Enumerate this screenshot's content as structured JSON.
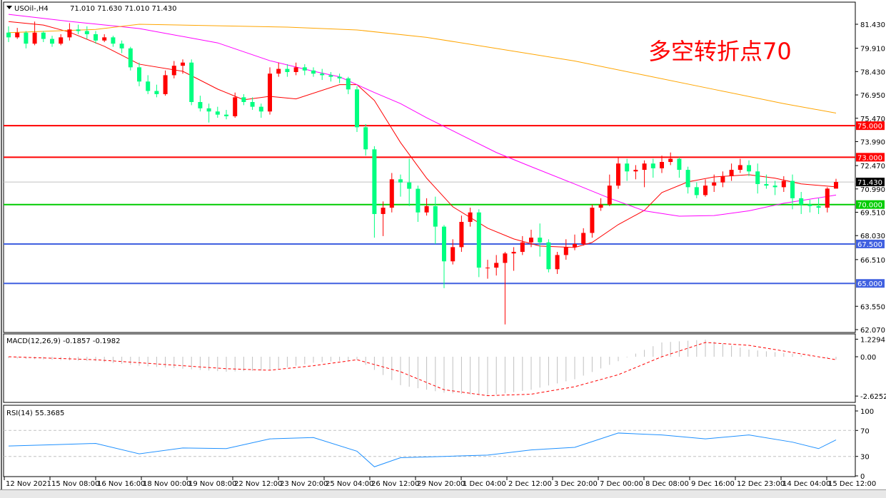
{
  "header": {
    "symbol": "USOil-,H4",
    "ohlc": "71.010 71.630 71.010 71.430"
  },
  "annotation": "多空转折点70",
  "colors": {
    "up": "#ff0000",
    "down": "#00ff80",
    "ma_fast": "#ff0000",
    "ma_mid": "#ff00ff",
    "ma_slow": "#ffa500",
    "macd_bar": "#c0c0c0",
    "macd_signal": "#ff0000",
    "rsi": "#1e90ff"
  },
  "chart_data": [
    {
      "type": "candlestick",
      "title": "USOil-,H4 71.010 71.630 71.010 71.430",
      "ylim": [
        62.07,
        81.43
      ],
      "price_ticks": [
        "81.430",
        "79.910",
        "78.430",
        "76.950",
        "75.470",
        "73.990",
        "72.470",
        "70.990",
        "69.510",
        "68.030",
        "66.510",
        "63.550",
        "62.070"
      ],
      "time_labels": [
        "12 Nov 2021",
        "15 Nov 08:00",
        "16 Nov 16:00",
        "18 Nov 00:00",
        "19 Nov 08:00",
        "22 Nov 12:00",
        "23 Nov 20:00",
        "25 Nov 04:00",
        "26 Nov 12:00",
        "29 Nov 20:00",
        "1 Dec 04:00",
        "2 Dec 12:00",
        "3 Dec 20:00",
        "7 Dec 00:00",
        "8 Dec 08:00",
        "9 Dec 16:00",
        "12 Dec 23:00",
        "14 Dec 04:00",
        "15 Dec 12:00"
      ],
      "candles_ohlc": [
        [
          80.9,
          81.3,
          80.3,
          80.6
        ],
        [
          80.6,
          81.2,
          80.5,
          80.9
        ],
        [
          80.9,
          81.0,
          79.9,
          80.2
        ],
        [
          80.2,
          81.6,
          80.1,
          80.9
        ],
        [
          80.9,
          81.0,
          80.3,
          80.5
        ],
        [
          80.5,
          80.7,
          80.0,
          80.2
        ],
        [
          80.2,
          80.8,
          80.1,
          80.6
        ],
        [
          80.6,
          81.5,
          80.4,
          81.1
        ],
        [
          81.1,
          81.4,
          80.8,
          81.0
        ],
        [
          81.0,
          81.3,
          80.5,
          80.8
        ],
        [
          80.8,
          81.0,
          80.2,
          80.4
        ],
        [
          80.4,
          80.8,
          80.3,
          80.6
        ],
        [
          80.6,
          80.7,
          80.0,
          80.2
        ],
        [
          80.2,
          80.4,
          79.6,
          79.9
        ],
        [
          79.9,
          80.0,
          78.5,
          78.7
        ],
        [
          78.7,
          79.0,
          77.5,
          77.8
        ],
        [
          77.8,
          78.2,
          77.0,
          77.2
        ],
        [
          77.2,
          77.6,
          76.8,
          77.0
        ],
        [
          77.0,
          78.5,
          76.9,
          78.2
        ],
        [
          78.2,
          79.1,
          78.0,
          78.8
        ],
        [
          78.8,
          79.2,
          78.3,
          79.0
        ],
        [
          79.0,
          79.2,
          76.3,
          76.5
        ],
        [
          76.5,
          76.9,
          75.9,
          76.1
        ],
        [
          76.1,
          76.4,
          75.2,
          75.9
        ],
        [
          75.9,
          76.2,
          75.5,
          75.7
        ],
        [
          75.7,
          76.0,
          75.4,
          75.6
        ],
        [
          75.6,
          77.1,
          75.5,
          76.8
        ],
        [
          76.8,
          77.0,
          76.3,
          76.5
        ],
        [
          76.5,
          76.8,
          76.0,
          76.2
        ],
        [
          76.2,
          76.4,
          75.5,
          75.9
        ],
        [
          75.9,
          78.7,
          75.7,
          78.3
        ],
        [
          78.3,
          79.0,
          78.1,
          78.6
        ],
        [
          78.6,
          78.9,
          78.1,
          78.4
        ],
        [
          78.4,
          79.0,
          78.2,
          78.7
        ],
        [
          78.7,
          78.9,
          78.2,
          78.5
        ],
        [
          78.5,
          78.7,
          78.1,
          78.3
        ],
        [
          78.3,
          78.6,
          77.9,
          78.2
        ],
        [
          78.2,
          78.4,
          77.8,
          78.1
        ],
        [
          78.1,
          78.3,
          77.7,
          78.0
        ],
        [
          78.0,
          78.1,
          77.0,
          77.3
        ],
        [
          77.3,
          77.5,
          74.6,
          74.9
        ],
        [
          74.9,
          75.1,
          73.1,
          73.5
        ],
        [
          73.5,
          73.7,
          67.9,
          69.4
        ],
        [
          69.4,
          70.2,
          68.0,
          69.8
        ],
        [
          69.8,
          72.0,
          69.5,
          71.6
        ],
        [
          71.6,
          71.9,
          70.5,
          71.4
        ],
        [
          71.4,
          72.9,
          69.9,
          71.0
        ],
        [
          71.0,
          71.2,
          68.9,
          69.5
        ],
        [
          69.5,
          70.4,
          69.3,
          69.9
        ],
        [
          69.9,
          70.5,
          67.5,
          68.6
        ],
        [
          68.6,
          68.7,
          64.7,
          66.4
        ],
        [
          66.4,
          67.8,
          66.2,
          67.3
        ],
        [
          67.3,
          69.3,
          67.0,
          68.9
        ],
        [
          68.9,
          69.8,
          68.6,
          69.5
        ],
        [
          69.5,
          69.7,
          65.4,
          66.0
        ],
        [
          66.0,
          66.5,
          65.3,
          66.0
        ],
        [
          66.0,
          66.8,
          65.5,
          66.3
        ],
        [
          66.3,
          67.0,
          62.4,
          66.9
        ],
        [
          66.9,
          67.3,
          65.8,
          67.0
        ],
        [
          67.0,
          68.0,
          66.8,
          67.6
        ],
        [
          67.6,
          68.4,
          67.3,
          67.9
        ],
        [
          67.9,
          68.8,
          66.7,
          67.6
        ],
        [
          67.6,
          67.8,
          65.7,
          65.9
        ],
        [
          65.9,
          67.0,
          65.6,
          66.8
        ],
        [
          66.8,
          67.8,
          66.5,
          67.3
        ],
        [
          67.3,
          68.1,
          67.1,
          67.5
        ],
        [
          67.5,
          68.5,
          67.4,
          68.2
        ],
        [
          68.2,
          70.0,
          67.9,
          69.8
        ],
        [
          69.8,
          70.4,
          69.6,
          70.0
        ],
        [
          70.0,
          71.9,
          69.9,
          71.2
        ],
        [
          71.2,
          73.0,
          71.0,
          72.6
        ],
        [
          72.6,
          72.9,
          71.5,
          72.1
        ],
        [
          72.1,
          72.5,
          71.6,
          72.2
        ],
        [
          72.2,
          72.8,
          71.1,
          72.6
        ],
        [
          72.6,
          72.9,
          71.7,
          72.3
        ],
        [
          72.3,
          73.1,
          72.0,
          72.7
        ],
        [
          72.7,
          73.3,
          72.5,
          72.9
        ],
        [
          72.9,
          73.0,
          71.7,
          72.2
        ],
        [
          72.2,
          72.4,
          70.7,
          71.1
        ],
        [
          71.1,
          71.4,
          70.4,
          70.6
        ],
        [
          70.6,
          71.6,
          70.5,
          71.2
        ],
        [
          71.2,
          71.9,
          70.8,
          71.4
        ],
        [
          71.4,
          72.1,
          71.1,
          71.8
        ],
        [
          71.8,
          72.6,
          71.5,
          72.2
        ],
        [
          72.2,
          72.9,
          72.0,
          72.5
        ],
        [
          72.5,
          72.8,
          71.8,
          72.1
        ],
        [
          72.1,
          72.6,
          70.7,
          71.3
        ],
        [
          71.3,
          71.9,
          71.0,
          71.2
        ],
        [
          71.2,
          71.5,
          70.6,
          71.1
        ],
        [
          71.1,
          71.8,
          70.8,
          71.5
        ],
        [
          71.5,
          71.9,
          69.7,
          70.4
        ],
        [
          70.4,
          70.8,
          69.4,
          70.0
        ],
        [
          70.0,
          70.3,
          69.5,
          69.9
        ],
        [
          69.9,
          70.4,
          69.4,
          69.8
        ],
        [
          69.8,
          71.1,
          69.5,
          71.01
        ],
        [
          71.01,
          71.63,
          71.01,
          71.43
        ]
      ],
      "moving_averages": {
        "fast": [
          [
            0,
            81.6
          ],
          [
            4,
            81.38
          ],
          [
            7,
            80.93
          ],
          [
            11,
            80.03
          ],
          [
            15,
            78.9
          ],
          [
            20,
            78.45
          ],
          [
            24,
            77.32
          ],
          [
            27,
            76.64
          ],
          [
            30,
            76.86
          ],
          [
            33,
            76.7
          ],
          [
            38,
            77.6
          ],
          [
            40,
            77.6
          ],
          [
            42,
            76.6
          ],
          [
            45,
            73.93
          ],
          [
            48,
            71.67
          ],
          [
            51,
            69.86
          ],
          [
            55,
            68.5
          ],
          [
            58,
            67.82
          ],
          [
            61,
            67.37
          ],
          [
            65,
            67.28
          ],
          [
            67,
            67.6
          ],
          [
            70,
            68.73
          ],
          [
            73,
            69.63
          ],
          [
            75,
            70.76
          ],
          [
            78,
            71.44
          ],
          [
            81,
            71.75
          ],
          [
            85,
            71.89
          ],
          [
            88,
            71.67
          ],
          [
            91,
            71.31
          ],
          [
            95,
            71.12
          ]
        ],
        "mid": [
          [
            0,
            82.06
          ],
          [
            7,
            81.61
          ],
          [
            15,
            81.16
          ],
          [
            24,
            80.25
          ],
          [
            30,
            79.12
          ],
          [
            35,
            78.45
          ],
          [
            38,
            78.1
          ],
          [
            42,
            77.1
          ],
          [
            45,
            76.4
          ],
          [
            48,
            75.5
          ],
          [
            52,
            74.4
          ],
          [
            56,
            73.3
          ],
          [
            60,
            72.4
          ],
          [
            65,
            71.3
          ],
          [
            69,
            70.4
          ],
          [
            73,
            69.6
          ],
          [
            77,
            69.26
          ],
          [
            81,
            69.3
          ],
          [
            85,
            69.6
          ],
          [
            89,
            70.08
          ],
          [
            95,
            70.6
          ]
        ],
        "slow": [
          [
            0,
            80.9
          ],
          [
            10,
            81.1
          ],
          [
            15,
            81.43
          ],
          [
            32,
            81.25
          ],
          [
            40,
            81.07
          ],
          [
            48,
            80.6
          ],
          [
            56,
            79.9
          ],
          [
            65,
            79.1
          ],
          [
            73,
            78.2
          ],
          [
            81,
            77.3
          ],
          [
            89,
            76.4
          ],
          [
            95,
            75.8
          ]
        ]
      },
      "horizontal_levels": [
        {
          "value": 75.0,
          "label": "75.000",
          "color": "#ff0000"
        },
        {
          "value": 73.0,
          "label": "73.000",
          "color": "#ff0000"
        },
        {
          "value": 70.0,
          "label": "70.000",
          "color": "#00cc00"
        },
        {
          "value": 67.5,
          "label": "67.500",
          "color": "#4060e0"
        },
        {
          "value": 65.0,
          "label": "65.000",
          "color": "#4060e0"
        }
      ],
      "current_price": {
        "value": 71.43,
        "label": "71.430"
      }
    },
    {
      "type": "bar+line",
      "title": "MACD(12,26,9) -0.1857 -0.1982",
      "ylim": [
        -2.6252,
        1.2294
      ],
      "ticks": [
        "1.2294",
        "0.00",
        "-2.6252"
      ],
      "macd": [
        [
          0,
          -0.1
        ],
        [
          5,
          -0.2
        ],
        [
          10,
          -0.3
        ],
        [
          15,
          -0.6
        ],
        [
          20,
          -0.8
        ],
        [
          25,
          -1.0
        ],
        [
          30,
          -0.9
        ],
        [
          35,
          -0.4
        ],
        [
          40,
          -0.2
        ],
        [
          45,
          -1.9
        ],
        [
          50,
          -2.4
        ],
        [
          55,
          -2.6
        ],
        [
          60,
          -2.2
        ],
        [
          65,
          -1.5
        ],
        [
          70,
          -0.3
        ],
        [
          75,
          1.0
        ],
        [
          80,
          1.2
        ],
        [
          85,
          0.5
        ],
        [
          90,
          0.2
        ],
        [
          95,
          -0.1857
        ]
      ],
      "signal": [
        [
          0,
          0.0
        ],
        [
          5,
          -0.1
        ],
        [
          10,
          -0.2
        ],
        [
          15,
          -0.4
        ],
        [
          20,
          -0.6
        ],
        [
          25,
          -0.8
        ],
        [
          30,
          -0.9
        ],
        [
          35,
          -0.6
        ],
        [
          40,
          -0.2
        ],
        [
          45,
          -1.0
        ],
        [
          50,
          -2.2
        ],
        [
          55,
          -2.6
        ],
        [
          60,
          -2.5
        ],
        [
          65,
          -2.0
        ],
        [
          70,
          -1.2
        ],
        [
          75,
          0.0
        ],
        [
          80,
          1.0
        ],
        [
          85,
          0.8
        ],
        [
          90,
          0.3
        ],
        [
          95,
          -0.1982
        ]
      ]
    },
    {
      "type": "line",
      "title": "RSI(14) 55.3685",
      "ylim": [
        0,
        100
      ],
      "ticks": [
        "100",
        "70",
        "30",
        "0"
      ],
      "levels": [
        70,
        30
      ],
      "rsi": [
        [
          0,
          46
        ],
        [
          5,
          48
        ],
        [
          10,
          50
        ],
        [
          15,
          34
        ],
        [
          20,
          43
        ],
        [
          25,
          42
        ],
        [
          30,
          57
        ],
        [
          35,
          59
        ],
        [
          40,
          38
        ],
        [
          42,
          14
        ],
        [
          45,
          28
        ],
        [
          50,
          30
        ],
        [
          55,
          32
        ],
        [
          60,
          40
        ],
        [
          65,
          44
        ],
        [
          70,
          66
        ],
        [
          75,
          63
        ],
        [
          80,
          57
        ],
        [
          85,
          63
        ],
        [
          90,
          52
        ],
        [
          93,
          42
        ],
        [
          95,
          55.37
        ]
      ]
    }
  ]
}
